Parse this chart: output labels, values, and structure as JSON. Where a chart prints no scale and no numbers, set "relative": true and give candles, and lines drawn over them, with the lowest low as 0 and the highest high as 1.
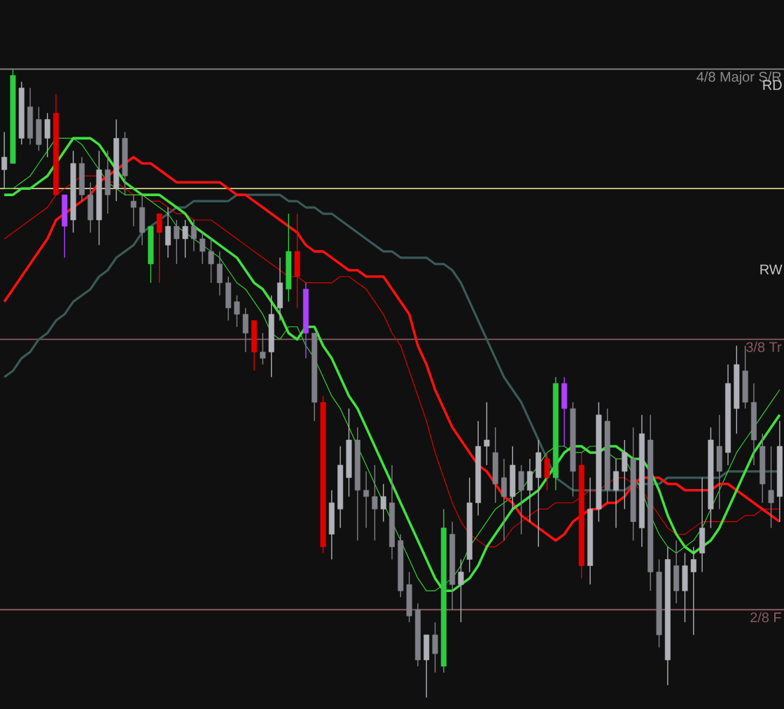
{
  "chart_data": {
    "type": "candlestick",
    "relative": true,
    "categories": [
      null,
      null,
      null,
      null,
      null,
      null,
      null,
      null,
      null,
      null,
      null,
      null,
      null,
      null,
      null,
      null,
      null,
      null,
      null,
      null,
      null,
      null,
      null,
      null,
      null,
      null,
      null,
      null,
      null,
      null,
      null,
      null,
      null,
      null,
      null,
      null,
      null,
      null,
      null,
      null,
      null,
      null,
      null,
      null,
      null,
      null,
      null,
      null,
      null,
      null,
      null,
      null,
      null,
      null,
      null,
      null,
      null,
      null,
      null,
      null,
      null,
      null,
      null,
      null,
      null,
      null,
      null,
      null,
      null,
      null,
      null,
      null,
      null,
      null,
      null,
      null,
      null,
      null,
      null,
      null,
      null,
      null,
      null,
      null,
      null,
      null,
      null,
      null,
      null,
      null,
      null
    ],
    "ohlc": [
      [
        0.84,
        0.9,
        0.81,
        0.86
      ],
      [
        0.85,
        1.0,
        0.85,
        0.99
      ],
      [
        0.89,
        0.98,
        0.88,
        0.97
      ],
      [
        0.94,
        0.97,
        0.88,
        0.89
      ],
      [
        0.92,
        0.94,
        0.87,
        0.88
      ],
      [
        0.89,
        0.93,
        0.86,
        0.92
      ],
      [
        0.93,
        0.96,
        0.8,
        0.8
      ],
      [
        0.8,
        0.8,
        0.7,
        0.75
      ],
      [
        0.76,
        0.87,
        0.74,
        0.85
      ],
      [
        0.85,
        0.86,
        0.79,
        0.8
      ],
      [
        0.8,
        0.82,
        0.74,
        0.76
      ],
      [
        0.76,
        0.87,
        0.72,
        0.84
      ],
      [
        0.84,
        0.87,
        0.77,
        0.8
      ],
      [
        0.81,
        0.92,
        0.79,
        0.89
      ],
      [
        0.89,
        0.9,
        0.8,
        0.83
      ],
      [
        0.79,
        0.8,
        0.75,
        0.78
      ],
      [
        0.78,
        0.8,
        0.72,
        0.74
      ],
      [
        0.69,
        0.75,
        0.66,
        0.75
      ],
      [
        0.77,
        0.77,
        0.66,
        0.74
      ],
      [
        0.72,
        0.78,
        0.7,
        0.75
      ],
      [
        0.75,
        0.76,
        0.69,
        0.73
      ],
      [
        0.73,
        0.76,
        0.7,
        0.75
      ],
      [
        0.75,
        0.76,
        0.71,
        0.73
      ],
      [
        0.73,
        0.74,
        0.69,
        0.71
      ],
      [
        0.71,
        0.73,
        0.66,
        0.69
      ],
      [
        0.69,
        0.71,
        0.64,
        0.66
      ],
      [
        0.66,
        0.67,
        0.6,
        0.62
      ],
      [
        0.63,
        0.64,
        0.59,
        0.61
      ],
      [
        0.61,
        0.62,
        0.55,
        0.58
      ],
      [
        0.6,
        0.6,
        0.52,
        0.55
      ],
      [
        0.55,
        0.58,
        0.53,
        0.54
      ],
      [
        0.55,
        0.64,
        0.51,
        0.61
      ],
      [
        0.62,
        0.7,
        0.6,
        0.66
      ],
      [
        0.65,
        0.77,
        0.63,
        0.71
      ],
      [
        0.71,
        0.77,
        0.62,
        0.67
      ],
      [
        0.65,
        0.66,
        0.54,
        0.58
      ],
      [
        0.58,
        0.58,
        0.44,
        0.47
      ],
      [
        0.47,
        0.48,
        0.23,
        0.24
      ],
      [
        0.26,
        0.33,
        0.22,
        0.31
      ],
      [
        0.3,
        0.4,
        0.27,
        0.37
      ],
      [
        0.35,
        0.46,
        0.32,
        0.41
      ],
      [
        0.41,
        0.43,
        0.25,
        0.33
      ],
      [
        0.33,
        0.36,
        0.27,
        0.32
      ],
      [
        0.32,
        0.37,
        0.25,
        0.3
      ],
      [
        0.3,
        0.34,
        0.28,
        0.32
      ],
      [
        0.31,
        0.37,
        0.22,
        0.24
      ],
      [
        0.25,
        0.26,
        0.16,
        0.17
      ],
      [
        0.18,
        0.2,
        0.12,
        0.13
      ],
      [
        0.14,
        0.15,
        0.05,
        0.06
      ],
      [
        0.06,
        0.1,
        0.0,
        0.1
      ],
      [
        0.1,
        0.12,
        0.04,
        0.07
      ],
      [
        0.05,
        0.3,
        0.04,
        0.27
      ],
      [
        0.26,
        0.28,
        0.14,
        0.18
      ],
      [
        0.18,
        0.22,
        0.12,
        0.2
      ],
      [
        0.22,
        0.35,
        0.2,
        0.31
      ],
      [
        0.31,
        0.44,
        0.29,
        0.4
      ],
      [
        0.4,
        0.47,
        0.37,
        0.41
      ],
      [
        0.39,
        0.43,
        0.31,
        0.34
      ],
      [
        0.35,
        0.38,
        0.25,
        0.32
      ],
      [
        0.32,
        0.4,
        0.3,
        0.37
      ],
      [
        0.36,
        0.37,
        0.26,
        0.33
      ],
      [
        0.33,
        0.38,
        0.28,
        0.36
      ],
      [
        0.35,
        0.41,
        0.24,
        0.39
      ],
      [
        0.38,
        0.39,
        0.33,
        0.35
      ],
      [
        0.35,
        0.51,
        0.33,
        0.5
      ],
      [
        0.5,
        0.51,
        0.4,
        0.46
      ],
      [
        0.46,
        0.47,
        0.32,
        0.36
      ],
      [
        0.37,
        0.39,
        0.19,
        0.21
      ],
      [
        0.21,
        0.35,
        0.18,
        0.3
      ],
      [
        0.3,
        0.47,
        0.28,
        0.45
      ],
      [
        0.44,
        0.46,
        0.31,
        0.33
      ],
      [
        0.33,
        0.38,
        0.27,
        0.36
      ],
      [
        0.36,
        0.41,
        0.3,
        0.39
      ],
      [
        0.38,
        0.43,
        0.25,
        0.28
      ],
      [
        0.27,
        0.45,
        0.24,
        0.42
      ],
      [
        0.41,
        0.45,
        0.17,
        0.2
      ],
      [
        0.2,
        0.22,
        0.08,
        0.1
      ],
      [
        0.06,
        0.24,
        0.02,
        0.22
      ],
      [
        0.21,
        0.25,
        0.15,
        0.17
      ],
      [
        0.17,
        0.23,
        0.12,
        0.21
      ],
      [
        0.2,
        0.24,
        0.1,
        0.22
      ],
      [
        0.23,
        0.35,
        0.2,
        0.27
      ],
      [
        0.3,
        0.43,
        0.27,
        0.41
      ],
      [
        0.4,
        0.45,
        0.3,
        0.36
      ],
      [
        0.39,
        0.53,
        0.37,
        0.5
      ],
      [
        0.46,
        0.56,
        0.42,
        0.53
      ],
      [
        0.52,
        0.56,
        0.46,
        0.47
      ],
      [
        0.47,
        0.5,
        0.37,
        0.41
      ],
      [
        0.4,
        0.42,
        0.31,
        0.34
      ],
      [
        0.33,
        0.4,
        0.27,
        0.31
      ],
      [
        0.32,
        0.44,
        0.28,
        0.4
      ]
    ],
    "colors": [
      "#b0b0b8",
      "#2ecc40",
      "#b0b0b8",
      "#808088",
      "#808088",
      "#b0b0b8",
      "#e00000",
      "#b040ff",
      "#b0b0b8",
      "#808088",
      "#808088",
      "#b0b0b8",
      "#808088",
      "#b0b0b8",
      "#808088",
      "#808088",
      "#808088",
      "#2ecc40",
      "#e00000",
      "#b0b0b8",
      "#808088",
      "#b0b0b8",
      "#808088",
      "#808088",
      "#808088",
      "#808088",
      "#808088",
      "#808088",
      "#808088",
      "#e00000",
      "#808088",
      "#b0b0b8",
      "#b0b0b8",
      "#2ecc40",
      "#e00000",
      "#b040ff",
      "#808088",
      "#e00000",
      "#b0b0b8",
      "#b0b0b8",
      "#b0b0b8",
      "#808088",
      "#808088",
      "#808088",
      "#b0b0b8",
      "#808088",
      "#808088",
      "#808088",
      "#808088",
      "#b0b0b8",
      "#808088",
      "#2ecc40",
      "#808088",
      "#b0b0b8",
      "#b0b0b8",
      "#b0b0b8",
      "#b0b0b8",
      "#808088",
      "#808088",
      "#b0b0b8",
      "#808088",
      "#b0b0b8",
      "#b0b0b8",
      "#e00000",
      "#2ecc40",
      "#b040ff",
      "#808088",
      "#e00000",
      "#b0b0b8",
      "#b0b0b8",
      "#808088",
      "#b0b0b8",
      "#b0b0b8",
      "#808088",
      "#b0b0b8",
      "#808088",
      "#808088",
      "#b0b0b8",
      "#808088",
      "#b0b0b8",
      "#b0b0b8",
      "#b0b0b8",
      "#b0b0b8",
      "#808088",
      "#b0b0b8",
      "#b0b0b8",
      "#808088",
      "#808088",
      "#808088",
      "#808088",
      "#b0b0b8"
    ],
    "series": [
      {
        "type": "line",
        "color": "#3a5a58",
        "values": [
          0.51,
          0.52,
          0.54,
          0.55,
          0.57,
          0.58,
          0.6,
          0.61,
          0.63,
          0.64,
          0.65,
          0.67,
          0.68,
          0.7,
          0.71,
          0.72,
          0.74,
          0.75,
          0.76,
          0.77,
          0.78,
          0.78,
          0.79,
          0.79,
          0.79,
          0.79,
          0.79,
          0.8,
          0.8,
          0.8,
          0.8,
          0.8,
          0.8,
          0.79,
          0.79,
          0.78,
          0.78,
          0.77,
          0.77,
          0.76,
          0.75,
          0.74,
          0.73,
          0.72,
          0.71,
          0.71,
          0.7,
          0.7,
          0.7,
          0.7,
          0.69,
          0.69,
          0.68,
          0.66,
          0.63,
          0.6,
          0.57,
          0.54,
          0.51,
          0.49,
          0.47,
          0.44,
          0.41,
          0.38,
          0.35,
          0.34,
          0.33,
          0.33,
          0.33,
          0.33,
          0.33,
          0.33,
          0.33,
          0.34,
          0.34,
          0.34,
          0.34,
          0.35,
          0.35,
          0.35,
          0.35,
          0.35,
          0.35,
          0.35,
          0.36,
          0.36,
          0.36,
          0.36,
          0.36,
          0.36,
          0.36
        ]
      },
      {
        "type": "line",
        "color": "#e00000",
        "values": [
          0.73,
          0.74,
          0.75,
          0.76,
          0.77,
          0.78,
          0.8,
          0.81,
          0.82,
          0.83,
          0.83,
          0.83,
          0.82,
          0.82,
          0.81,
          0.8,
          0.8,
          0.79,
          0.79,
          0.78,
          0.77,
          0.77,
          0.76,
          0.76,
          0.76,
          0.75,
          0.74,
          0.73,
          0.72,
          0.71,
          0.7,
          0.69,
          0.68,
          0.67,
          0.67,
          0.66,
          0.66,
          0.66,
          0.66,
          0.67,
          0.67,
          0.66,
          0.65,
          0.63,
          0.61,
          0.58,
          0.56,
          0.52,
          0.48,
          0.44,
          0.39,
          0.35,
          0.31,
          0.28,
          0.26,
          0.25,
          0.24,
          0.24,
          0.25,
          0.27,
          0.28,
          0.29,
          0.3,
          0.3,
          0.31,
          0.31,
          0.31,
          0.32,
          0.33,
          0.33,
          0.34,
          0.35,
          0.35,
          0.34,
          0.33,
          0.31,
          0.29,
          0.27,
          0.26,
          0.26,
          0.27,
          0.28,
          0.28,
          0.28,
          0.28,
          0.28,
          0.29,
          0.29,
          0.3,
          0.3,
          0.3
        ]
      },
      {
        "type": "line",
        "color": "#30d030",
        "values": [
          0.81,
          0.81,
          0.82,
          0.83,
          0.85,
          0.87,
          0.89,
          0.89,
          0.89,
          0.88,
          0.86,
          0.84,
          0.82,
          0.81,
          0.8,
          0.8,
          0.8,
          0.79,
          0.78,
          0.77,
          0.75,
          0.74,
          0.73,
          0.72,
          0.71,
          0.7,
          0.68,
          0.66,
          0.65,
          0.63,
          0.61,
          0.58,
          0.57,
          0.59,
          0.59,
          0.56,
          0.54,
          0.51,
          0.48,
          0.46,
          0.43,
          0.4,
          0.37,
          0.34,
          0.31,
          0.28,
          0.25,
          0.22,
          0.19,
          0.17,
          0.17,
          0.18,
          0.19,
          0.21,
          0.24,
          0.26,
          0.28,
          0.3,
          0.31,
          0.32,
          0.33,
          0.35,
          0.37,
          0.39,
          0.4,
          0.4,
          0.39,
          0.39,
          0.4,
          0.4,
          0.39,
          0.38,
          0.38,
          null,
          0.33,
          0.29,
          0.26,
          0.24,
          0.23,
          0.24,
          0.25,
          0.27,
          0.3,
          0.33,
          0.36,
          0.39,
          0.41,
          0.43,
          0.45,
          0.47,
          0.49
        ]
      },
      {
        "type": "line",
        "color": "#ff1010",
        "values": [
          0.63,
          0.65,
          0.67,
          0.69,
          0.71,
          0.73,
          0.76,
          0.77,
          0.78,
          0.79,
          0.8,
          0.82,
          0.83,
          0.84,
          0.85,
          0.86,
          0.85,
          0.85,
          0.84,
          0.83,
          0.82,
          0.82,
          0.82,
          0.82,
          0.82,
          0.82,
          0.81,
          0.8,
          0.8,
          0.79,
          0.78,
          0.77,
          0.76,
          0.75,
          0.74,
          0.72,
          0.71,
          0.71,
          0.7,
          0.69,
          0.68,
          0.68,
          0.67,
          0.67,
          0.67,
          0.65,
          0.63,
          0.61,
          0.56,
          0.53,
          0.49,
          0.46,
          0.43,
          0.41,
          0.39,
          0.37,
          0.36,
          0.34,
          0.32,
          0.31,
          0.29,
          0.28,
          0.27,
          0.26,
          0.25,
          0.26,
          0.28,
          0.29,
          0.3,
          0.3,
          0.31,
          0.31,
          0.32,
          0.34,
          0.35,
          0.35,
          0.35,
          0.34,
          0.34,
          0.33,
          0.33,
          0.33,
          0.33,
          0.34,
          0.34,
          0.33,
          0.32,
          0.31,
          0.3,
          0.29,
          0.28
        ]
      },
      {
        "type": "line",
        "color": "#40e040",
        "values": [
          0.8,
          0.8,
          0.81,
          0.81,
          0.82,
          0.83,
          0.85,
          0.87,
          0.89,
          0.89,
          0.89,
          0.88,
          0.86,
          0.84,
          0.82,
          0.81,
          0.8,
          0.8,
          0.8,
          0.79,
          0.78,
          0.77,
          0.75,
          0.74,
          0.73,
          0.72,
          0.71,
          0.7,
          0.68,
          0.66,
          0.65,
          0.63,
          0.61,
          0.58,
          0.57,
          0.59,
          0.59,
          0.56,
          0.54,
          0.51,
          0.48,
          0.46,
          0.43,
          0.4,
          0.37,
          0.34,
          0.31,
          0.28,
          0.25,
          0.22,
          0.19,
          0.17,
          0.17,
          0.18,
          0.19,
          0.21,
          0.24,
          0.26,
          0.28,
          0.3,
          0.31,
          0.32,
          0.33,
          0.35,
          0.37,
          0.39,
          0.4,
          0.4,
          0.39,
          0.39,
          0.4,
          0.4,
          0.39,
          0.38,
          0.38,
          0.36,
          0.33,
          0.29,
          0.26,
          0.24,
          0.23,
          0.24,
          0.25,
          0.27,
          0.3,
          0.33,
          0.36,
          0.39,
          0.41,
          0.43,
          0.45
        ]
      }
    ],
    "ref_lines": [
      {
        "axis": "y",
        "value": 1.0,
        "label": "4/8 Major S/R",
        "color": "#8c8c8c"
      },
      {
        "axis": "y",
        "value": 0.81,
        "color": "#d8cf8a"
      },
      {
        "axis": "y",
        "value": 0.57,
        "label": "3/8 Tr",
        "color": "#8a5a62"
      },
      {
        "axis": "y",
        "value": 0.14,
        "label": "2/8 F",
        "color": "#8a5a62"
      }
    ],
    "annotations": [
      "RD",
      "RW"
    ]
  }
}
